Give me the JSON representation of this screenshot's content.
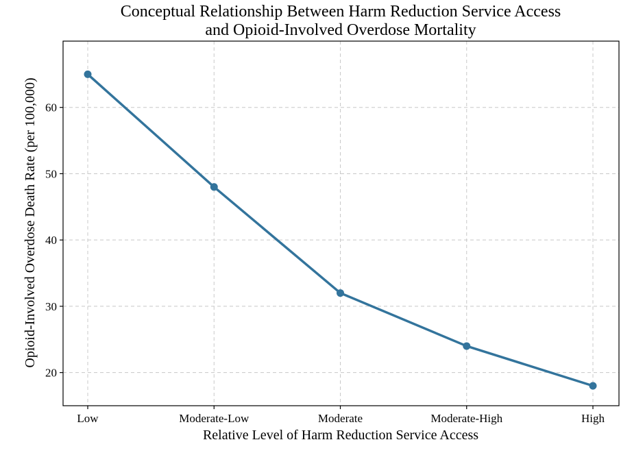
{
  "chart_data": {
    "type": "line",
    "title": "Conceptual Relationship Between Harm Reduction Service Access and Opioid-Involved Overdose Mortality",
    "title_lines": [
      "Conceptual Relationship Between Harm Reduction Service Access",
      "and Opioid-Involved Overdose Mortality"
    ],
    "xlabel": "Relative Level of Harm Reduction Service Access",
    "ylabel": "Opioid-Involved Overdose Death Rate (per 100,000)",
    "categories": [
      "Low",
      "Moderate-Low",
      "Moderate",
      "Moderate-High",
      "High"
    ],
    "values": [
      65,
      48,
      32,
      24,
      18
    ],
    "ylim": [
      15,
      70
    ],
    "yticks": [
      20,
      30,
      40,
      50,
      60
    ],
    "grid": true,
    "marker": "circle",
    "line_color": "#33749c"
  }
}
